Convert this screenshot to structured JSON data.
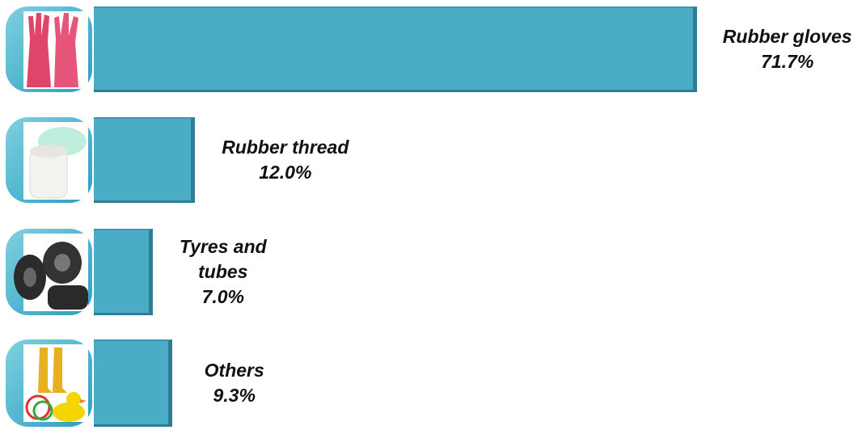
{
  "chart_data": {
    "type": "bar",
    "orientation": "horizontal",
    "categories": [
      "Rubber gloves",
      "Rubber thread",
      "Tyres and tubes",
      "Others"
    ],
    "values": [
      71.7,
      12.0,
      7.0,
      9.3
    ],
    "value_labels": [
      "71.7%",
      "12.0%",
      "7.0%",
      "9.3%"
    ],
    "color": "#4bacc6"
  }
}
